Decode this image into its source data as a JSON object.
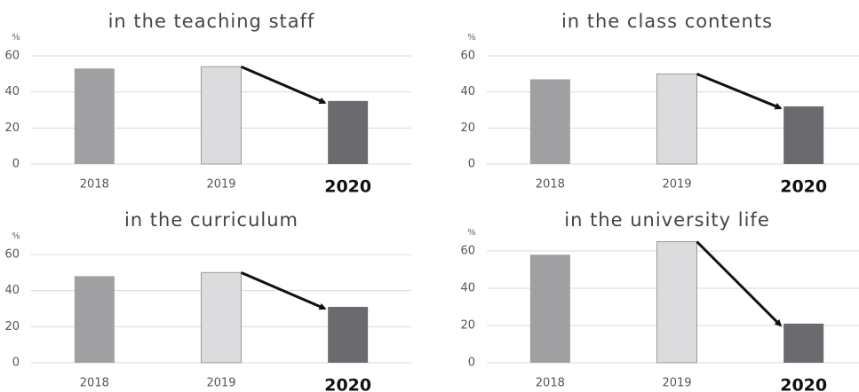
{
  "chart_data": [
    {
      "type": "bar",
      "title": "in the teaching staff",
      "y_unit": "%",
      "categories": [
        "2018",
        "2019",
        "2020"
      ],
      "values": [
        53,
        54,
        35
      ],
      "colors": [
        "#a0a0a3",
        "#dcdcde",
        "#6b6b6f"
      ],
      "ylim": [
        0,
        60
      ],
      "yticks": [
        0,
        20,
        40,
        60
      ],
      "grid": true
    },
    {
      "type": "bar",
      "title": "in the class contents",
      "y_unit": "%",
      "categories": [
        "2018",
        "2019",
        "2020"
      ],
      "values": [
        47,
        50,
        32
      ],
      "colors": [
        "#a0a0a3",
        "#dcdcde",
        "#6b6b6f"
      ],
      "ylim": [
        0,
        60
      ],
      "yticks": [
        0,
        20,
        40,
        60
      ],
      "grid": true
    },
    {
      "type": "bar",
      "title": "in the curriculum",
      "y_unit": "%",
      "categories": [
        "2018",
        "2019",
        "2020"
      ],
      "values": [
        48,
        50,
        31
      ],
      "colors": [
        "#a0a0a3",
        "#dcdcde",
        "#6b6b6f"
      ],
      "ylim": [
        0,
        60
      ],
      "yticks": [
        0,
        20,
        40,
        60
      ],
      "grid": true
    },
    {
      "type": "bar",
      "title": "in the university life",
      "y_unit": "%",
      "categories": [
        "2018",
        "2019",
        "2020"
      ],
      "values": [
        58,
        65,
        21
      ],
      "colors": [
        "#a0a0a3",
        "#dcdcde",
        "#6b6b6f"
      ],
      "ylim": [
        0,
        70
      ],
      "yticks": [
        0,
        20,
        40,
        60
      ],
      "grid": true
    }
  ]
}
